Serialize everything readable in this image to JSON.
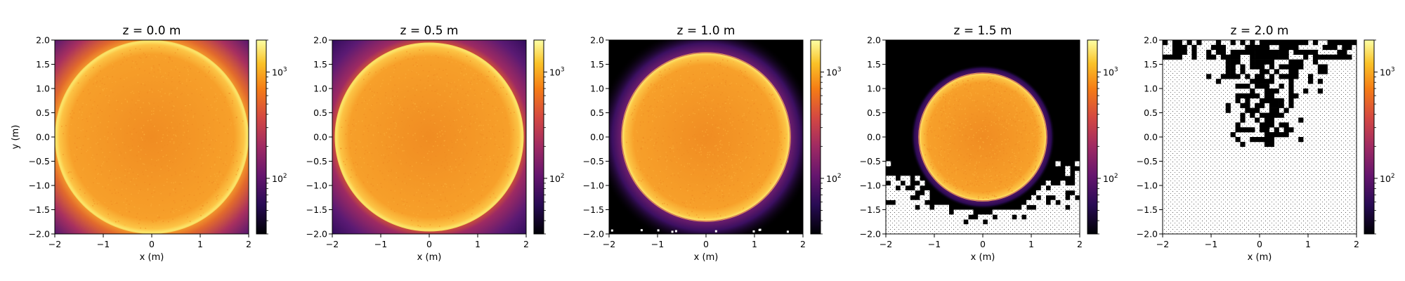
{
  "chart_data": [
    {
      "type": "heatmap",
      "title": "z = 0.0 m",
      "xlabel": "x (m)",
      "ylabel": "y (m)",
      "xlim": [
        -2,
        2
      ],
      "ylim": [
        -2,
        2
      ],
      "xticks": [
        "−2",
        "−1",
        "0",
        "1",
        "2"
      ],
      "yticks": [
        "2.0",
        "1.5",
        "1.0",
        "0.5",
        "0.0",
        "−0.5",
        "−1.0",
        "−1.5",
        "−2.0"
      ],
      "colorbar": {
        "scale": "log",
        "range": [
          30,
          2000
        ],
        "ticks": [
          {
            "label": "10",
            "exp": "2",
            "value": 100
          },
          {
            "label": "10",
            "exp": "3",
            "value": 1000
          }
        ]
      },
      "disk_radius_m": 2.0
    },
    {
      "type": "heatmap",
      "title": "z = 0.5 m",
      "xlabel": "x (m)",
      "ylabel": "",
      "xlim": [
        -2,
        2
      ],
      "ylim": [
        -2,
        2
      ],
      "xticks": [
        "−2",
        "−1",
        "0",
        "1",
        "2"
      ],
      "yticks": [
        "2.0",
        "1.5",
        "1.0",
        "0.5",
        "0.0",
        "−0.5",
        "−1.0",
        "−1.5",
        "−2.0"
      ],
      "colorbar": {
        "scale": "log",
        "range": [
          30,
          2000
        ],
        "ticks": [
          {
            "label": "10",
            "exp": "2",
            "value": 100
          },
          {
            "label": "10",
            "exp": "3",
            "value": 1000
          }
        ]
      },
      "disk_radius_m": 1.95
    },
    {
      "type": "heatmap",
      "title": "z = 1.0 m",
      "xlabel": "x (m)",
      "ylabel": "",
      "xlim": [
        -2,
        2
      ],
      "ylim": [
        -2,
        2
      ],
      "xticks": [
        "−2",
        "−1",
        "0",
        "1",
        "2"
      ],
      "yticks": [
        "2.0",
        "1.5",
        "1.0",
        "0.5",
        "0.0",
        "−0.5",
        "−1.0",
        "−1.5",
        "−2.0"
      ],
      "colorbar": {
        "scale": "log",
        "range": [
          30,
          2000
        ],
        "ticks": [
          {
            "label": "10",
            "exp": "2",
            "value": 100
          },
          {
            "label": "10",
            "exp": "3",
            "value": 1000
          }
        ]
      },
      "disk_radius_m": 1.75
    },
    {
      "type": "heatmap",
      "title": "z = 1.5 m",
      "xlabel": "x (m)",
      "ylabel": "",
      "xlim": [
        -2,
        2
      ],
      "ylim": [
        -2,
        2
      ],
      "xticks": [
        "−2",
        "−1",
        "0",
        "1",
        "2"
      ],
      "yticks": [
        "2.0",
        "1.5",
        "1.0",
        "0.5",
        "0.0",
        "−0.5",
        "−1.0",
        "−1.5",
        "−2.0"
      ],
      "colorbar": {
        "scale": "log",
        "range": [
          30,
          2000
        ],
        "ticks": [
          {
            "label": "10",
            "exp": "2",
            "value": 100
          },
          {
            "label": "10",
            "exp": "3",
            "value": 1000
          }
        ]
      },
      "disk_radius_m": 1.33
    },
    {
      "type": "heatmap",
      "title": "z = 2.0 m",
      "xlabel": "x (m)",
      "ylabel": "",
      "xlim": [
        -2,
        2
      ],
      "ylim": [
        -2,
        2
      ],
      "xticks": [
        "−2",
        "−1",
        "0",
        "1",
        "2"
      ],
      "yticks": [
        "2.0",
        "1.5",
        "1.0",
        "0.5",
        "0.0",
        "−0.5",
        "−1.0",
        "−1.5",
        "−2.0"
      ],
      "colorbar": {
        "scale": "log",
        "range": [
          30,
          2000
        ],
        "ticks": [
          {
            "label": "10",
            "exp": "2",
            "value": 100
          },
          {
            "label": "10",
            "exp": "3",
            "value": 1000
          }
        ]
      },
      "disk_radius_m": 0
    }
  ],
  "colormap": "inferno",
  "colors": {
    "disk": "#f7a02a",
    "disk_center": "#f08c22",
    "rim": "#fbe56a",
    "outer": "#5a1d74",
    "empty_bg": "#000000",
    "masked": "#ffffff"
  }
}
